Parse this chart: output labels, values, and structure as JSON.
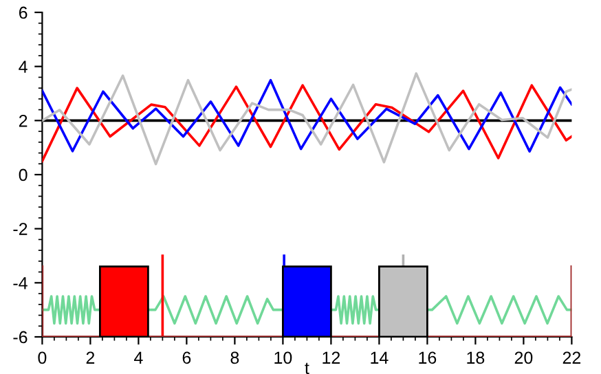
{
  "chart_data": {
    "type": "line",
    "xlabel": "t",
    "xlim": [
      0,
      22
    ],
    "ylim": [
      -6,
      6
    ],
    "xticks": [
      0,
      2,
      4,
      6,
      8,
      10,
      12,
      14,
      16,
      18,
      20,
      22
    ],
    "yticks": [
      -6,
      -4,
      -2,
      0,
      2,
      4,
      6
    ],
    "ref_lines": [
      {
        "axis": "y",
        "value": 2,
        "color": "#000000"
      }
    ],
    "series": [
      {
        "color": "#ff0000",
        "x": [
          0,
          1.45,
          2.82,
          4.53,
          5.1,
          6.53,
          8.06,
          9.49,
          10.82,
          12.34,
          13.86,
          14.53,
          16.06,
          17.49,
          18.95,
          20.34,
          21.77,
          22
        ],
        "values": [
          0.5,
          3.2,
          1.41,
          2.59,
          2.5,
          1.07,
          3.25,
          1.03,
          3.3,
          0.93,
          2.6,
          2.48,
          1.58,
          3.1,
          0.61,
          3.3,
          1.27,
          1.41
        ]
      },
      {
        "color": "#0000ff",
        "x": [
          0,
          1.26,
          2.53,
          3.77,
          4.72,
          5.86,
          7.0,
          8.15,
          9.49,
          10.75,
          12.0,
          13.1,
          14.3,
          15.49,
          16.44,
          17.73,
          19.05,
          20.25,
          21.52,
          22
        ],
        "values": [
          3.1,
          0.87,
          3.07,
          1.71,
          2.44,
          1.41,
          2.7,
          1.07,
          3.49,
          0.95,
          2.8,
          1.32,
          2.43,
          1.88,
          2.93,
          0.95,
          3.03,
          0.86,
          3.22,
          2.6
        ]
      },
      {
        "color": "#c0c0c0",
        "x": [
          0,
          0.72,
          1.96,
          3.35,
          4.72,
          6.06,
          7.39,
          8.72,
          9.4,
          10.25,
          10.82,
          11.58,
          12.92,
          14.2,
          15.54,
          16.91,
          18.15,
          19.1,
          19.96,
          21.0,
          21.77,
          22
        ],
        "values": [
          2,
          2.39,
          1.12,
          3.66,
          0.39,
          3.49,
          0.9,
          2.64,
          2.4,
          2.4,
          2.2,
          1.12,
          3.32,
          0.46,
          3.74,
          0.9,
          2.6,
          2.02,
          2.09,
          1.37,
          3.07,
          3.15
        ]
      },
      {
        "color": "#70d898",
        "x": [
          0,
          0.26,
          0.38,
          0.5,
          0.62,
          0.74,
          0.86,
          0.98,
          1.1,
          1.22,
          1.34,
          1.46,
          1.58,
          1.7,
          1.82,
          1.94,
          2.06,
          2.18,
          2.4,
          3.4,
          4.4,
          4.7,
          5.04,
          5.5,
          5.94,
          6.37,
          6.79,
          7.22,
          7.65,
          8.08,
          8.52,
          8.95,
          9.35,
          9.6,
          10,
          11,
          12,
          12.2,
          12.3,
          12.42,
          12.54,
          12.66,
          12.78,
          12.9,
          13.02,
          13.14,
          13.26,
          13.38,
          13.5,
          13.62,
          13.74,
          13.86,
          14,
          15,
          16,
          16.2,
          16.78,
          17.24,
          17.7,
          18.17,
          18.65,
          19.1,
          19.58,
          20.05,
          20.53,
          20.99,
          21.45,
          21.8,
          22
        ],
        "values": [
          -5,
          -5,
          -4.5,
          -5.5,
          -4.5,
          -5.5,
          -4.5,
          -5.5,
          -4.5,
          -5.5,
          -4.5,
          -5.5,
          -4.5,
          -5.5,
          -4.5,
          -5.5,
          -4.5,
          -5,
          -5,
          null,
          -5,
          -5,
          -4.5,
          -5.5,
          -4.5,
          -5.5,
          -4.5,
          -5.5,
          -4.5,
          -5.5,
          -4.5,
          -5.5,
          -4.6,
          -5,
          -5,
          null,
          -5,
          -5,
          -4.5,
          -5.5,
          -4.5,
          -5.5,
          -4.5,
          -5.5,
          -4.5,
          -5.5,
          -4.5,
          -5.5,
          -4.5,
          -5.5,
          -4.5,
          -5,
          -5,
          null,
          -5,
          -5,
          -4.5,
          -5.5,
          -4.5,
          -5.5,
          -4.5,
          -5.5,
          -4.5,
          -5.5,
          -4.5,
          -5.5,
          -4.5,
          -5,
          -5
        ]
      },
      {
        "type": "bar",
        "x": [
          3.4,
          11,
          15
        ],
        "base": [
          -6,
          -6,
          -6
        ],
        "values": [
          2.6,
          2.6,
          2.6
        ],
        "colors": [
          "#ff0000",
          "#0000ff",
          "#c0c0c0"
        ]
      },
      {
        "color": "#ff0000",
        "x": [
          5,
          5
        ],
        "values": [
          -6,
          -3
        ]
      },
      {
        "color": "#0000ff",
        "x": [
          10.05,
          10.05
        ],
        "values": [
          -3.35,
          -3
        ]
      },
      {
        "color": "#b0b0b0",
        "x": [
          15,
          15
        ],
        "values": [
          -3.35,
          -3
        ]
      },
      {
        "color": "#a02828",
        "x": [
          0,
          0
        ],
        "values": [
          -6,
          -3.4
        ]
      },
      {
        "color": "#a02828",
        "x": [
          22,
          22
        ],
        "values": [
          -6,
          -3.4
        ]
      },
      {
        "color": "#a02828",
        "x": [
          0,
          22
        ],
        "values": [
          -6,
          -6
        ]
      }
    ]
  }
}
